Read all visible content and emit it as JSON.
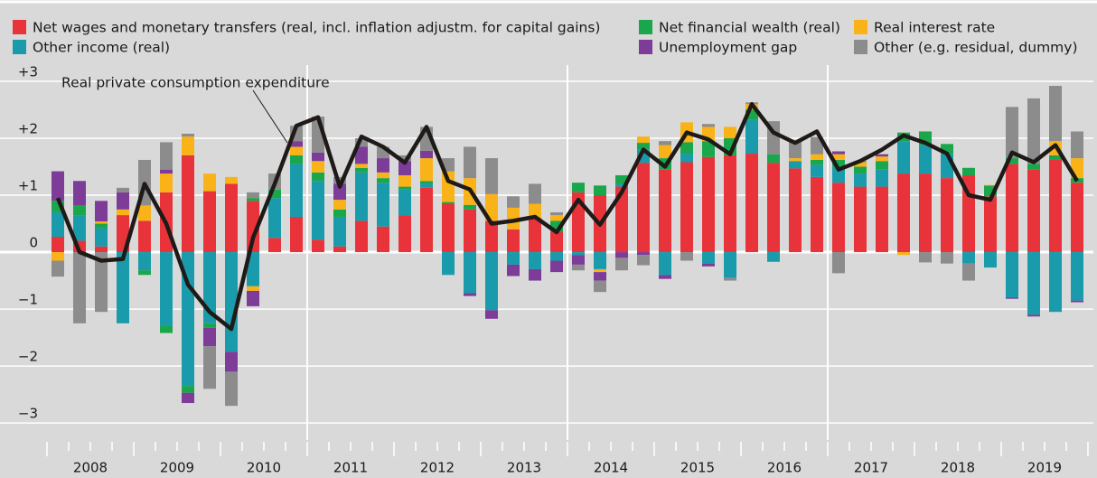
{
  "chart_data": {
    "type": "bar",
    "annotation": "Real private consumption expenditure",
    "years": [
      "2008",
      "2009",
      "2010",
      "2011",
      "2012",
      "2013",
      "2014",
      "2015",
      "2016",
      "2017",
      "2018",
      "2019"
    ],
    "ylim": [
      -3.3,
      3.2
    ],
    "yticks": [
      {
        "value": 3,
        "label": "+3"
      },
      {
        "value": 2,
        "label": "+2"
      },
      {
        "value": 1,
        "label": "+1"
      },
      0,
      {
        "value": -1,
        "label": "−1"
      },
      {
        "value": -2,
        "label": "−2"
      },
      {
        "value": -3,
        "label": "−3"
      }
    ],
    "grid": true,
    "series": [
      {
        "name": "Net wages and monetary transfers (real, incl. inflation adjustm. for capital gains)",
        "color": "#e8333a",
        "values": [
          0.27,
          0.2,
          0.1,
          0.65,
          0.55,
          1.05,
          1.7,
          1.07,
          1.2,
          0.9,
          0.25,
          0.62,
          0.22,
          0.1,
          0.55,
          0.45,
          0.65,
          1.13,
          0.85,
          0.75,
          0.55,
          0.4,
          0.6,
          0.35,
          1.05,
          1.0,
          1.15,
          1.57,
          1.45,
          1.58,
          1.67,
          1.7,
          1.73,
          1.57,
          1.47,
          1.32,
          1.22,
          1.15,
          1.15,
          1.38,
          1.38,
          1.3,
          1.35,
          0.98,
          1.55,
          1.45,
          1.62,
          1.22
        ]
      },
      {
        "name": "Other income (real)",
        "color": "#1a9bab",
        "values": [
          0.43,
          0.45,
          0.32,
          -1.25,
          -0.32,
          -1.3,
          -2.35,
          -1.25,
          -1.75,
          -0.6,
          0.7,
          0.93,
          1.03,
          0.52,
          0.85,
          0.77,
          0.45,
          0.07,
          -0.4,
          -0.72,
          -1.02,
          -0.22,
          -0.3,
          -0.15,
          -0.05,
          -0.3,
          0.05,
          0.23,
          -0.4,
          0.15,
          -0.2,
          -0.45,
          0.59,
          -0.17,
          0.13,
          0.21,
          0.28,
          0.23,
          0.3,
          0.57,
          0.5,
          0.42,
          -0.2,
          -0.27,
          -0.8,
          -1.1,
          -1.05,
          -0.85
        ]
      },
      {
        "name": "Net financial wealth (real)",
        "color": "#1aa64a",
        "values": [
          0.2,
          0.17,
          0.08,
          0,
          -0.08,
          -0.12,
          -0.12,
          -0.08,
          0,
          0.05,
          0.15,
          0.15,
          0.15,
          0.13,
          0.08,
          0.08,
          0.05,
          0.05,
          0.03,
          0.08,
          0,
          0,
          0,
          0.2,
          0.17,
          0.17,
          0.15,
          0.12,
          0.2,
          0.2,
          0.28,
          0.3,
          0.18,
          0.15,
          0,
          0.09,
          0.12,
          0.12,
          0.15,
          0.15,
          0.24,
          0.18,
          0.13,
          0.19,
          0.1,
          0.1,
          0.08,
          0.08
        ]
      },
      {
        "name": "Real interest rate",
        "color": "#f9b218",
        "values": [
          -0.15,
          0,
          0.04,
          0.1,
          0.27,
          0.33,
          0.33,
          0.31,
          0.12,
          -0.08,
          0,
          0.15,
          0.2,
          0.17,
          0.07,
          0.1,
          0.2,
          0.4,
          0.54,
          0.47,
          0.47,
          0.38,
          0.25,
          0.1,
          0,
          -0.05,
          0,
          0.11,
          0.23,
          0.35,
          0.25,
          0.2,
          0.1,
          0,
          0.05,
          0.1,
          0.1,
          0.08,
          0.08,
          -0.05,
          0,
          0,
          0,
          0.01,
          0,
          0,
          0.25,
          0.35
        ]
      },
      {
        "name": "Unemployment gap",
        "color": "#7d3c98",
        "values": [
          0.52,
          0.43,
          0.36,
          0.3,
          0,
          0.07,
          -0.18,
          -0.32,
          -0.35,
          -0.27,
          0,
          0.1,
          0.15,
          0.28,
          0.3,
          0.25,
          0.25,
          0.13,
          0,
          -0.05,
          -0.15,
          -0.2,
          -0.2,
          -0.2,
          -0.17,
          -0.15,
          -0.1,
          -0.05,
          -0.07,
          0,
          -0.05,
          0,
          0,
          0,
          0,
          0,
          0.05,
          0,
          0.04,
          0,
          0,
          0,
          0,
          0,
          -0.02,
          -0.03,
          0,
          -0.03
        ]
      },
      {
        "name": "Other (e.g. residual, dummy)",
        "color": "#8c8c8c",
        "values": [
          -0.28,
          -1.25,
          -1.05,
          0.08,
          0.8,
          0.48,
          0.05,
          -0.75,
          -0.6,
          0.1,
          0.28,
          0.27,
          0.63,
          0.12,
          0.15,
          0.2,
          0.1,
          0.42,
          0.23,
          0.55,
          0.63,
          0.2,
          0.35,
          0.05,
          -0.1,
          -0.2,
          -0.22,
          -0.18,
          0.07,
          -0.15,
          0.05,
          -0.05,
          0.03,
          0.58,
          0.3,
          0.3,
          -0.37,
          0.02,
          0,
          0,
          -0.18,
          -0.2,
          -0.3,
          0,
          0.9,
          1.15,
          0.97,
          0.47
        ]
      }
    ],
    "line": {
      "color": "#1f1a17",
      "values": [
        0.95,
        0,
        -0.15,
        -0.12,
        1.2,
        0.5,
        -0.57,
        -1.05,
        -1.35,
        0.25,
        1.2,
        2.22,
        2.37,
        1.15,
        2.03,
        1.85,
        1.57,
        2.2,
        1.25,
        1.1,
        0.5,
        0.55,
        0.62,
        0.35,
        0.92,
        0.48,
        1.05,
        1.8,
        1.5,
        2.1,
        1.98,
        1.72,
        2.6,
        2.1,
        1.92,
        2.12,
        1.45,
        1.6,
        1.8,
        2.05,
        1.92,
        1.73,
        1.0,
        0.92,
        1.75,
        1.58,
        1.88,
        1.25
      ]
    }
  }
}
